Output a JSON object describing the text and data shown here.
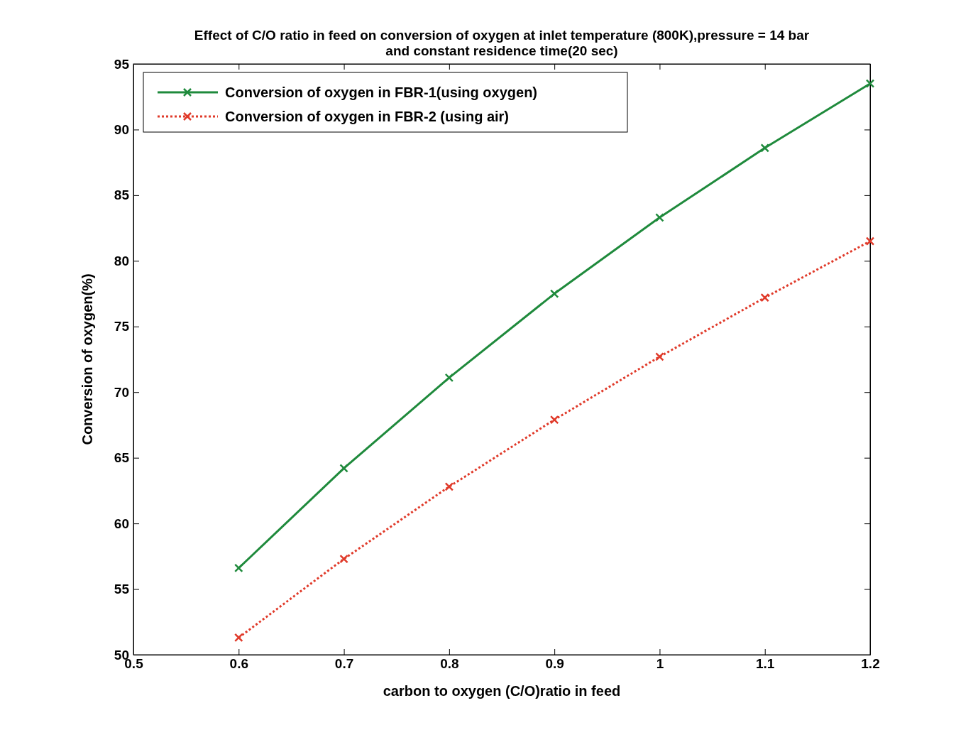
{
  "chart_data": {
    "type": "line",
    "title": "Effect of C/O ratio in feed on conversion of oxygen at inlet temperature (800K),pressure = 14 bar\nand constant residence time(20 sec)",
    "xlabel": "carbon to oxygen (C/O)ratio in feed",
    "ylabel": "Conversion of oxygen(%)",
    "x": [
      0.6,
      0.7,
      0.8,
      0.9,
      1.0,
      1.1,
      1.2
    ],
    "series": [
      {
        "name": "Conversion of oxygen in FBR-1(using oxygen)",
        "color": "#1f8a3c",
        "line_style": "solid",
        "values": [
          56.6,
          64.2,
          71.1,
          77.5,
          83.3,
          88.6,
          93.5
        ]
      },
      {
        "name": "Conversion of oxygen in FBR-2 (using air)",
        "color": "#e03a2a",
        "line_style": "dotted",
        "values": [
          51.3,
          57.3,
          62.8,
          67.9,
          72.7,
          77.2,
          81.5
        ]
      }
    ],
    "xlim": [
      0.5,
      1.2
    ],
    "xticks": [
      0.5,
      0.6,
      0.7,
      0.8,
      0.9,
      1,
      1.1,
      1.2
    ],
    "ylim": [
      50,
      95
    ],
    "yticks": [
      50,
      55,
      60,
      65,
      70,
      75,
      80,
      85,
      90,
      95
    ],
    "grid": false,
    "legend": "top left",
    "marker": "cross"
  }
}
